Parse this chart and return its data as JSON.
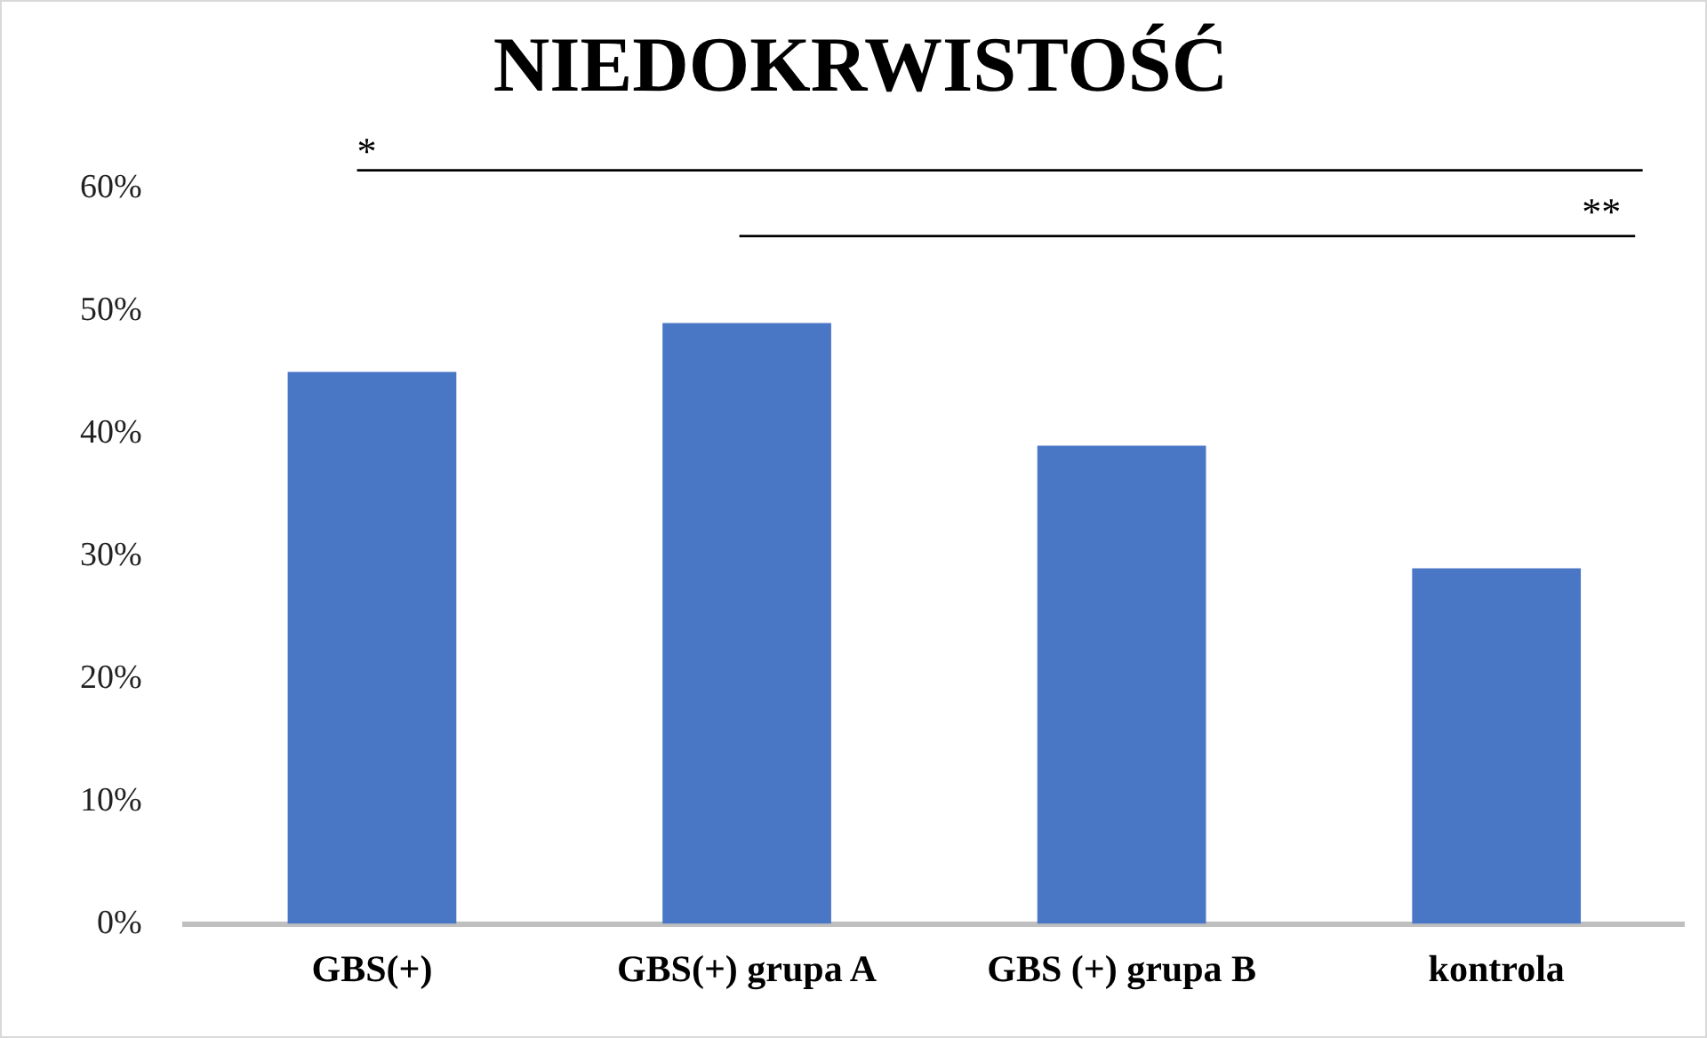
{
  "chart_data": {
    "type": "bar",
    "title": "NIEDOKRWISTOŚĆ",
    "categories": [
      "GBS(+)",
      "GBS(+) grupa A",
      "GBS (+) grupa B",
      "kontrola"
    ],
    "values": [
      45,
      49,
      39,
      29
    ],
    "color": "#4a76c6",
    "ylim": [
      0,
      60
    ],
    "yticks": [
      {
        "value": 0,
        "label": "0%"
      },
      {
        "value": 10,
        "label": "10%"
      },
      {
        "value": 20,
        "label": "20%"
      },
      {
        "value": 30,
        "label": "30%"
      },
      {
        "value": 40,
        "label": "40%"
      },
      {
        "value": 50,
        "label": "50%"
      },
      {
        "value": 60,
        "label": "60%"
      }
    ],
    "grid": false,
    "legend": false,
    "annotations": [
      "*",
      "**"
    ]
  }
}
